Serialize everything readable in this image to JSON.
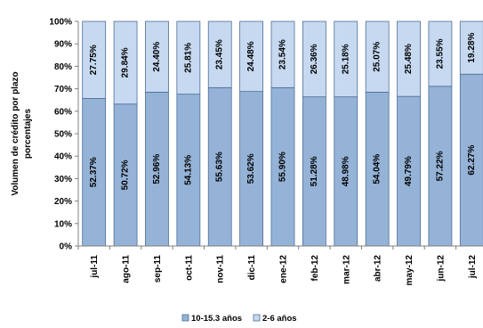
{
  "chart_data": {
    "type": "bar",
    "stacked": true,
    "title": "",
    "xlabel": "",
    "ylabel_lines": [
      "Volumen de crédito por plazo",
      "porcentajes"
    ],
    "ylim": [
      0,
      1
    ],
    "y_ticks": [
      "0%",
      "10%",
      "20%",
      "30%",
      "40%",
      "50%",
      "60%",
      "70%",
      "80%",
      "90%",
      "100%"
    ],
    "categories": [
      "jul-11",
      "ago-11",
      "sep-11",
      "oct-11",
      "nov-11",
      "dic-11",
      "ene-12",
      "feb-12",
      "mar-12",
      "abr-12",
      "may-12",
      "jun-12",
      "jul-12"
    ],
    "series": [
      {
        "name": "10-15.3 años",
        "color": "#95b3d7",
        "bar_fractions": [
          0.657,
          0.632,
          0.685,
          0.676,
          0.705,
          0.688,
          0.705,
          0.664,
          0.664,
          0.685,
          0.666,
          0.711,
          0.765
        ],
        "labels": [
          "52.37%",
          "50.72%",
          "52.96%",
          "54.13%",
          "55.63%",
          "53.62%",
          "55.90%",
          "51.28%",
          "48.98%",
          "54.04%",
          "49.79%",
          "57.22%",
          "62.27%"
        ]
      },
      {
        "name": "2-6 años",
        "color": "#c6d9f1",
        "labels": [
          "27.75%",
          "29.84%",
          "24.40%",
          "25.81%",
          "23.45%",
          "24.48%",
          "23.54%",
          "26.36%",
          "25.18%",
          "25.07%",
          "25.48%",
          "23.55%",
          "19.28%"
        ]
      }
    ],
    "grid": false,
    "legend_position": "bottom"
  }
}
